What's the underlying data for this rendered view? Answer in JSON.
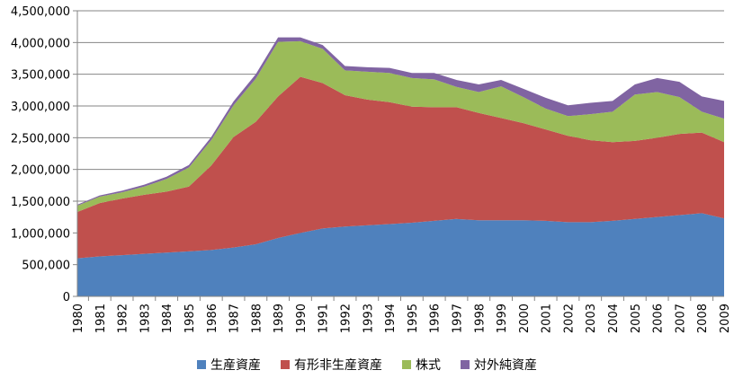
{
  "chart_data": {
    "type": "area",
    "stacked": true,
    "title": "",
    "xlabel": "",
    "ylabel": "",
    "ylim": [
      0,
      4500000
    ],
    "yticks": [
      0,
      500000,
      1000000,
      1500000,
      2000000,
      2500000,
      3000000,
      3500000,
      4000000,
      4500000
    ],
    "ytick_labels": [
      "0",
      "500,000",
      "1,000,000",
      "1,500,000",
      "2,000,000",
      "2,500,000",
      "3,000,000",
      "3,500,000",
      "4,000,000",
      "4,500,000"
    ],
    "x": [
      "1980",
      "1981",
      "1982",
      "1983",
      "1984",
      "1985",
      "1986",
      "1987",
      "1988",
      "1989",
      "1990",
      "1991",
      "1992",
      "1993",
      "1994",
      "1995",
      "1996",
      "1997",
      "1998",
      "1999",
      "2000",
      "2001",
      "2002",
      "2003",
      "2004",
      "2005",
      "2006",
      "2007",
      "2008",
      "2009"
    ],
    "grid": "horizontal",
    "legend_position": "bottom",
    "series": [
      {
        "name": "生産資産",
        "color": "#4F81BD",
        "values": [
          600000,
          630000,
          650000,
          670000,
          690000,
          710000,
          730000,
          770000,
          820000,
          920000,
          1000000,
          1070000,
          1100000,
          1120000,
          1140000,
          1160000,
          1190000,
          1220000,
          1200000,
          1200000,
          1200000,
          1190000,
          1170000,
          1170000,
          1190000,
          1220000,
          1250000,
          1280000,
          1310000,
          1230000
        ]
      },
      {
        "name": "有形非生産資産",
        "color": "#C0504D",
        "values": [
          730000,
          840000,
          890000,
          930000,
          960000,
          1020000,
          1330000,
          1740000,
          1930000,
          2230000,
          2460000,
          2290000,
          2070000,
          1980000,
          1920000,
          1830000,
          1790000,
          1760000,
          1690000,
          1610000,
          1530000,
          1440000,
          1360000,
          1290000,
          1240000,
          1230000,
          1250000,
          1280000,
          1270000,
          1200000
        ]
      },
      {
        "name": "株式",
        "color": "#9BBB59",
        "values": [
          100000,
          100000,
          100000,
          130000,
          200000,
          300000,
          400000,
          500000,
          680000,
          860000,
          560000,
          540000,
          390000,
          440000,
          460000,
          450000,
          440000,
          320000,
          330000,
          500000,
          410000,
          330000,
          310000,
          410000,
          480000,
          730000,
          720000,
          580000,
          330000,
          370000
        ]
      },
      {
        "name": "対外純資産",
        "color": "#8064A2",
        "values": [
          15000,
          20000,
          25000,
          30000,
          35000,
          40000,
          50000,
          60000,
          70000,
          70000,
          60000,
          60000,
          70000,
          70000,
          80000,
          80000,
          100000,
          110000,
          120000,
          100000,
          130000,
          170000,
          170000,
          180000,
          170000,
          160000,
          220000,
          240000,
          240000,
          280000
        ]
      }
    ]
  }
}
